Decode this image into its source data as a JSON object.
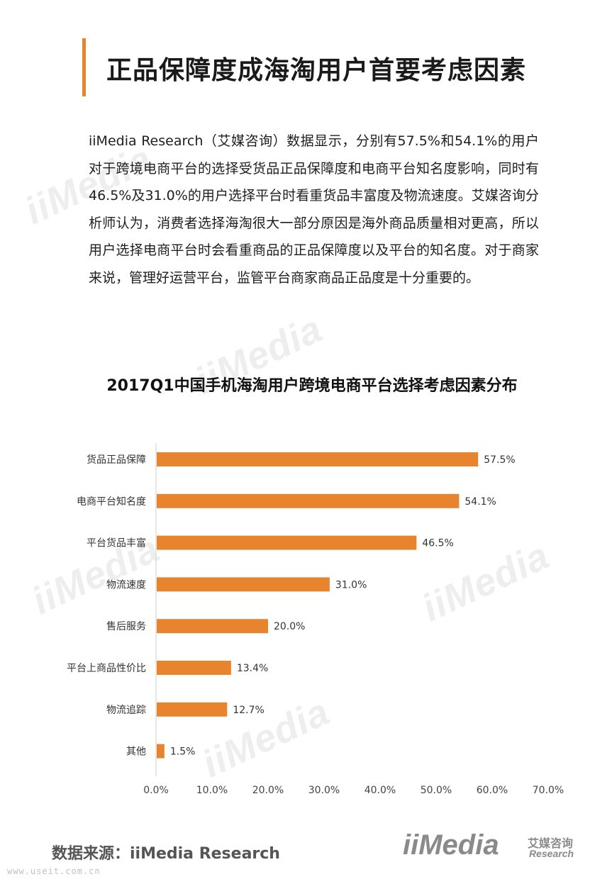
{
  "page": {
    "title": "正品保障度成海淘用户首要考虑因素",
    "intro": "iiMedia Research（艾媒咨询）数据显示，分别有57.5%和54.1%的用户对于跨境电商平台的选择受货品正品保障度和电商平台知名度影响，同时有46.5%及31.0%的用户选择平台时看重货品丰富度及物流速度。艾媒咨询分析师认为，消费者选择海淘很大一部分原因是海外商品质量相对更高，所以用户选择电商平台时会看重商品的正品保障度以及平台的知名度。对于商家来说，管理好运营平台，监管平台商家商品正品度是十分重要的。",
    "source": "数据来源：iiMedia Research",
    "watermark": "iiMedia",
    "logo_mark": "iiMedia",
    "logo_cn": "艾媒咨询",
    "logo_en": "Research",
    "website": "www.useit.com.cn"
  },
  "chart_data": {
    "type": "bar",
    "orientation": "horizontal",
    "title": "2017Q1中国手机海淘用户跨境电商平台选择考虑因素分布",
    "categories": [
      "货品正品保障",
      "电商平台知名度",
      "平台货品丰富",
      "物流速度",
      "售后服务",
      "平台上商品性价比",
      "物流追踪",
      "其他"
    ],
    "values": [
      57.5,
      54.1,
      46.5,
      31.0,
      20.0,
      13.4,
      12.7,
      1.5
    ],
    "value_labels": [
      "57.5%",
      "54.1%",
      "46.5%",
      "31.0%",
      "20.0%",
      "13.4%",
      "12.7%",
      "1.5%"
    ],
    "x_ticks": [
      "0.0%",
      "10.0%",
      "20.0%",
      "30.0%",
      "40.0%",
      "50.0%",
      "60.0%",
      "70.0%"
    ],
    "xlim": [
      0,
      70
    ],
    "grid": false,
    "bar_color": "#e9842e"
  }
}
